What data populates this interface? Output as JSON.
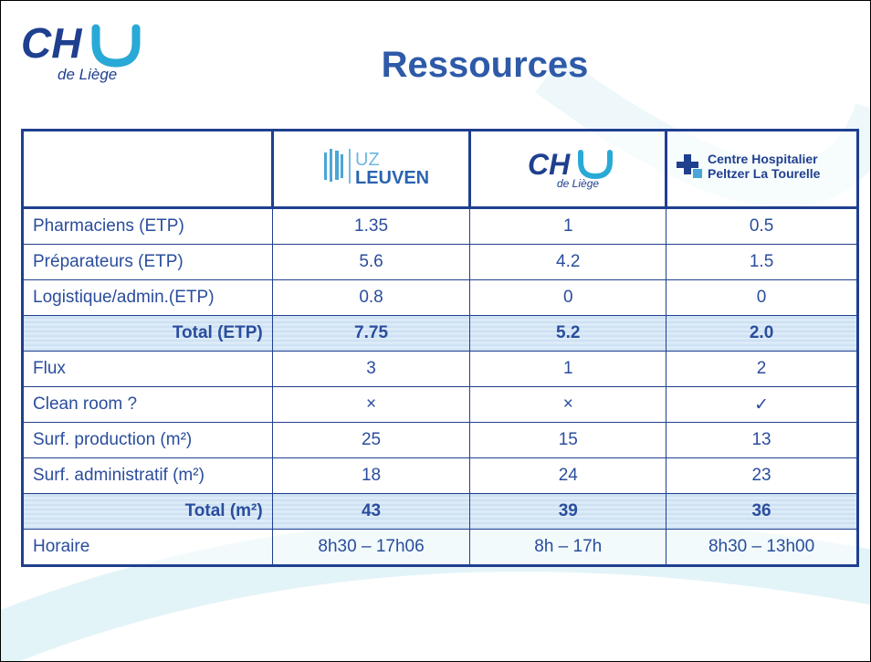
{
  "logo": {
    "name": "CH",
    "subtitle": "de Liège"
  },
  "title": "Ressources",
  "table": {
    "columns": [
      {
        "lines": [
          "UZ",
          "LEUVEN"
        ]
      },
      {
        "name": "CH",
        "subtitle": "de Liège"
      },
      {
        "lines": [
          "Centre Hospitalier",
          "Peltzer La Tourelle"
        ]
      }
    ],
    "rows": [
      [
        "Pharmaciens (ETP)",
        "1.35",
        "1",
        "0.5"
      ],
      [
        "Préparateurs (ETP)",
        "5.6",
        "4.2",
        "1.5"
      ],
      [
        "Logistique/admin.(ETP)",
        "0.8",
        "0",
        "0"
      ],
      [
        "Total (ETP)",
        "7.75",
        "5.2",
        "2.0"
      ],
      [
        "Flux",
        "3",
        "1",
        "2"
      ],
      [
        "Clean room ?",
        "×",
        "×",
        "✓"
      ],
      [
        "Surf. production (m²)",
        "25",
        "15",
        "13"
      ],
      [
        "Surf. administratif (m²)",
        "18",
        "24",
        "23"
      ],
      [
        "Total (m²)",
        "43",
        "39",
        "36"
      ],
      [
        "Horaire",
        "8h30 – 17h06",
        "8h – 17h",
        "8h30 – 13h00"
      ]
    ]
  }
}
